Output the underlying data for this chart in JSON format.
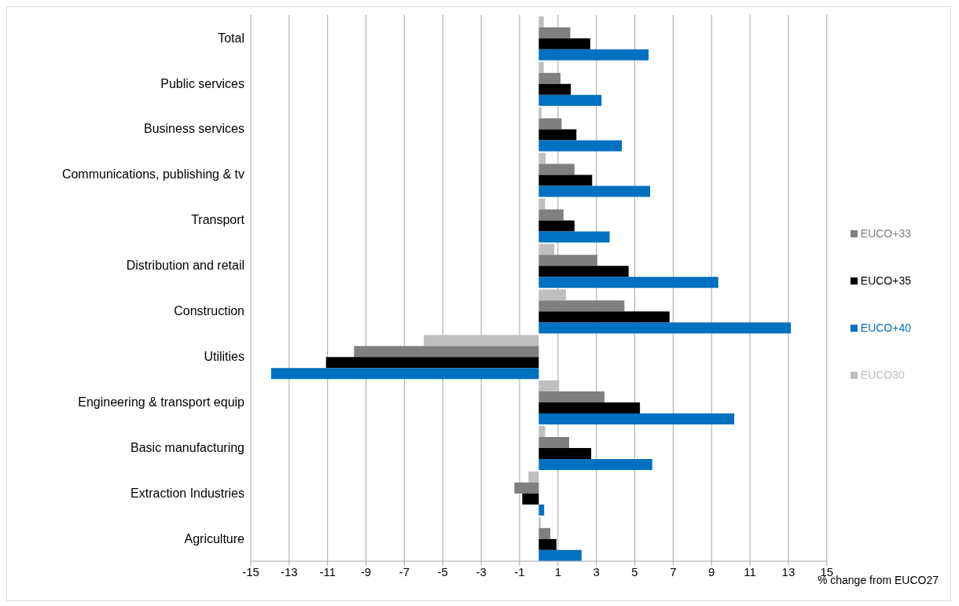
{
  "chart_data": {
    "type": "bar",
    "orientation": "horizontal",
    "xlabel": "% change from EUCO27",
    "categories": [
      "Total",
      "Public services",
      "Business services",
      "Communications, publishing & tv",
      "Transport",
      "Distribution and retail",
      "Construction",
      "Utilities",
      "Engineering & transport equip",
      "Basic manufacturing",
      "Extraction Industries",
      "Agriculture"
    ],
    "series": [
      {
        "name": "EUCO30",
        "color": "#bfbfbf",
        "values": [
          0.26,
          0.26,
          0.14,
          0.36,
          0.33,
          0.81,
          1.42,
          -5.99,
          1.06,
          0.33,
          -0.54,
          0.1
        ]
      },
      {
        "name": "EUCO+33",
        "color": "#7f7f7f",
        "values": [
          1.64,
          1.13,
          1.19,
          1.86,
          1.29,
          3.05,
          4.46,
          -9.62,
          3.42,
          1.58,
          -1.27,
          0.6
        ]
      },
      {
        "name": "EUCO+35",
        "color": "#000000",
        "values": [
          2.68,
          1.67,
          1.96,
          2.78,
          1.86,
          4.68,
          6.81,
          -11.08,
          5.27,
          2.73,
          -0.86,
          0.92
        ]
      },
      {
        "name": "EUCO+40",
        "color": "#0070c0",
        "values": [
          5.72,
          3.27,
          4.33,
          5.8,
          3.69,
          9.35,
          13.13,
          -13.94,
          10.18,
          5.91,
          0.28,
          2.23
        ]
      }
    ],
    "xlim": [
      -15,
      15
    ],
    "xticks": [
      -15,
      -13,
      -11,
      -9,
      -7,
      -5,
      -3,
      -1,
      1,
      3,
      5,
      7,
      9,
      11,
      13,
      15
    ],
    "grid": "x",
    "legend": "right"
  }
}
